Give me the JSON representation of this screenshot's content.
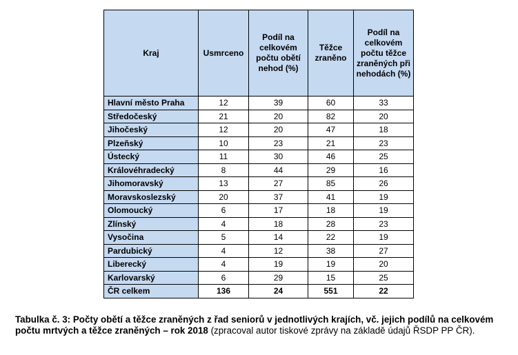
{
  "table": {
    "headers": [
      "Kraj",
      "Usmrceno",
      "Podíl na celkovém počtu obětí nehod (%)",
      "Těžce zraněno",
      "Podíl na celkovém počtu těžce zraněných při nehodách (%)"
    ],
    "rows": [
      [
        "Hlavní město Praha",
        "12",
        "39",
        "60",
        "33"
      ],
      [
        "Středočeský",
        "21",
        "20",
        "82",
        "20"
      ],
      [
        "Jihočeský",
        "12",
        "20",
        "47",
        "18"
      ],
      [
        "Plzeňský",
        "10",
        "23",
        "21",
        "23"
      ],
      [
        "Ústecký",
        "11",
        "30",
        "46",
        "25"
      ],
      [
        "Královéhradecký",
        "8",
        "44",
        "29",
        "16"
      ],
      [
        "Jihomoravský",
        "13",
        "27",
        "85",
        "26"
      ],
      [
        "Moravskoslezský",
        "20",
        "37",
        "41",
        "19"
      ],
      [
        "Olomoucký",
        "6",
        "17",
        "18",
        "19"
      ],
      [
        "Zlínský",
        "4",
        "18",
        "28",
        "23"
      ],
      [
        "Vysočina",
        "5",
        "14",
        "22",
        "19"
      ],
      [
        "Pardubický",
        "4",
        "12",
        "38",
        "27"
      ],
      [
        "Liberecký",
        "4",
        "19",
        "19",
        "20"
      ],
      [
        "Karlovarský",
        "6",
        "29",
        "15",
        "25"
      ]
    ],
    "total": [
      "ČR celkem",
      "136",
      "24",
      "551",
      "22"
    ]
  },
  "caption": {
    "bold_text": "Tabulka č. 3: Počty obětí a těžce zraněných z řad seniorů v jednotlivých krajích, vč. jejich podílů na celkovém počtu mrtvých a těžce zraněných – rok 2018",
    "normal_text": " (zpracoval autor tiskové zprávy na základě údajů ŘSDP PP ČR)."
  },
  "colors": {
    "header_fill": "#c5d9f1",
    "border": "#000000"
  }
}
